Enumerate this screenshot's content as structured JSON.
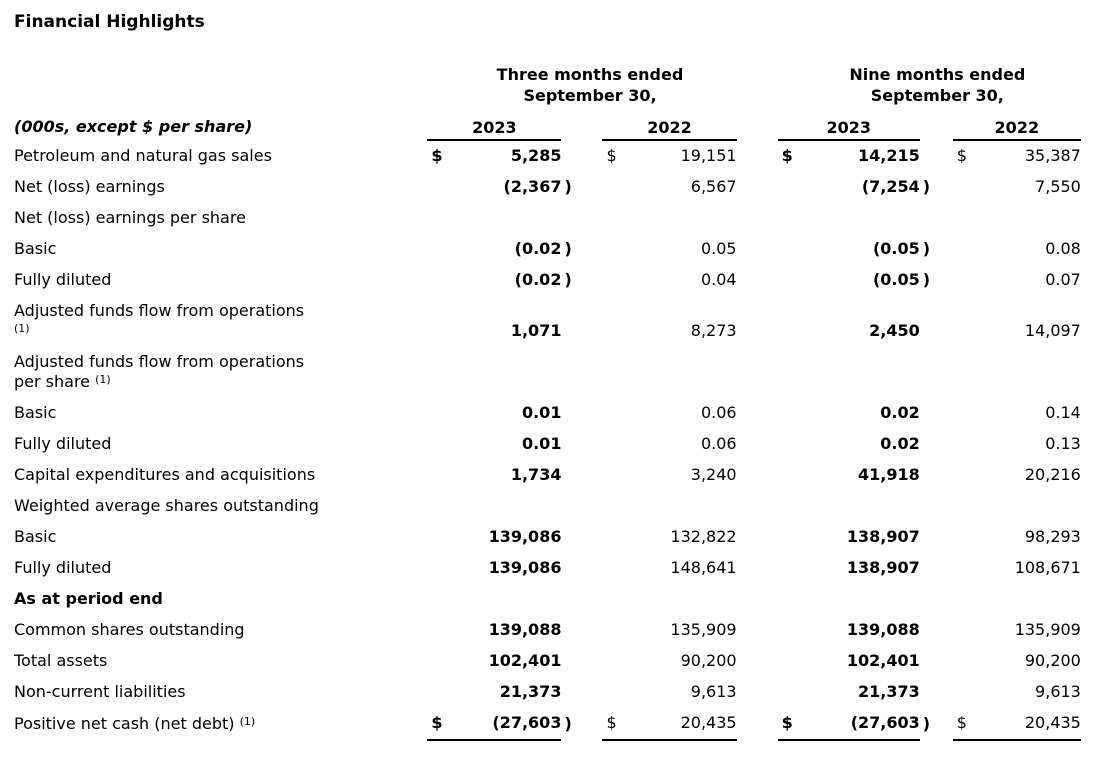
{
  "title": "Financial Highlights",
  "colors": {
    "text": "#000000",
    "background": "#ffffff",
    "rule": "#000000"
  },
  "table": {
    "period_groups": [
      {
        "line1": "Three months ended",
        "line2": "September 30,"
      },
      {
        "line1": "Nine months ended",
        "line2": "September 30,"
      }
    ],
    "years": [
      "2023",
      "2022",
      "2023",
      "2022"
    ],
    "units_note": "(000s, except $ per share)",
    "rows": [
      {
        "label_parts": [
          {
            "text": "Petroleum and natural gas sales"
          }
        ],
        "cells": [
          {
            "d": "$",
            "v": "5,285"
          },
          {
            "d": "$",
            "v": "19,151"
          },
          {
            "d": "$",
            "v": "14,215"
          },
          {
            "d": "$",
            "v": "35,387"
          }
        ]
      },
      {
        "label_parts": [
          {
            "text": "Net (loss) earnings"
          }
        ],
        "cells": [
          {
            "v": "(2,367",
            "p": ")"
          },
          {
            "v": "6,567"
          },
          {
            "v": "(7,254",
            "p": ")"
          },
          {
            "v": "7,550"
          }
        ]
      },
      {
        "label_parts": [
          {
            "text": "Net (loss) earnings per share"
          }
        ],
        "cells": []
      },
      {
        "label_parts": [
          {
            "text": "Basic"
          }
        ],
        "cells": [
          {
            "v": "(0.02",
            "p": ")"
          },
          {
            "v": "0.05"
          },
          {
            "v": "(0.05",
            "p": ")"
          },
          {
            "v": "0.08"
          }
        ]
      },
      {
        "label_parts": [
          {
            "text": "Fully diluted"
          }
        ],
        "cells": [
          {
            "v": "(0.02",
            "p": ")"
          },
          {
            "v": "0.04"
          },
          {
            "v": "(0.05",
            "p": ")"
          },
          {
            "v": "0.07"
          }
        ]
      },
      {
        "label_parts": [
          {
            "text": "Adjusted funds flow from operations"
          },
          {
            "br": true
          },
          {
            "sup": "(1)"
          }
        ],
        "cells": [
          {
            "v": "1,071"
          },
          {
            "v": "8,273"
          },
          {
            "v": "2,450"
          },
          {
            "v": "14,097"
          }
        ]
      },
      {
        "label_parts": [
          {
            "text": "Adjusted funds flow from operations"
          },
          {
            "br": true
          },
          {
            "text": "per share "
          },
          {
            "sup": "(1)"
          }
        ],
        "cells": []
      },
      {
        "label_parts": [
          {
            "text": "Basic"
          }
        ],
        "cells": [
          {
            "v": "0.01"
          },
          {
            "v": "0.06"
          },
          {
            "v": "0.02"
          },
          {
            "v": "0.14"
          }
        ]
      },
      {
        "label_parts": [
          {
            "text": "Fully diluted"
          }
        ],
        "cells": [
          {
            "v": "0.01"
          },
          {
            "v": "0.06"
          },
          {
            "v": "0.02"
          },
          {
            "v": "0.13"
          }
        ]
      },
      {
        "label_parts": [
          {
            "text": "Capital expenditures and acquisitions"
          }
        ],
        "cells": [
          {
            "v": "1,734"
          },
          {
            "v": "3,240"
          },
          {
            "v": "41,918"
          },
          {
            "v": "20,216"
          }
        ]
      },
      {
        "label_parts": [
          {
            "text": "Weighted average shares outstanding"
          }
        ],
        "cells": []
      },
      {
        "label_parts": [
          {
            "text": "Basic"
          }
        ],
        "cells": [
          {
            "v": "139,086"
          },
          {
            "v": "132,822"
          },
          {
            "v": "138,907"
          },
          {
            "v": "98,293"
          }
        ]
      },
      {
        "label_parts": [
          {
            "text": "Fully diluted"
          }
        ],
        "cells": [
          {
            "v": "139,086"
          },
          {
            "v": "148,641"
          },
          {
            "v": "138,907"
          },
          {
            "v": "108,671"
          }
        ]
      },
      {
        "label_parts": [
          {
            "text": "As at period end"
          }
        ],
        "section": true,
        "cells": []
      },
      {
        "label_parts": [
          {
            "text": "Common shares outstanding"
          }
        ],
        "cells": [
          {
            "v": "139,088"
          },
          {
            "v": "135,909"
          },
          {
            "v": "139,088"
          },
          {
            "v": "135,909"
          }
        ]
      },
      {
        "label_parts": [
          {
            "text": "Total assets"
          }
        ],
        "cells": [
          {
            "v": "102,401"
          },
          {
            "v": "90,200"
          },
          {
            "v": "102,401"
          },
          {
            "v": "90,200"
          }
        ]
      },
      {
        "label_parts": [
          {
            "text": "Non-current liabilities"
          }
        ],
        "cells": [
          {
            "v": "21,373"
          },
          {
            "v": "9,613"
          },
          {
            "v": "21,373"
          },
          {
            "v": "9,613"
          }
        ]
      },
      {
        "label_parts": [
          {
            "text": "Positive net cash (net debt) "
          },
          {
            "sup": "(1)"
          }
        ],
        "underline": true,
        "cells": [
          {
            "d": "$",
            "v": "(27,603",
            "p": ")"
          },
          {
            "d": "$",
            "v": "20,435"
          },
          {
            "d": "$",
            "v": "(27,603",
            "p": ")"
          },
          {
            "d": "$",
            "v": "20,435"
          }
        ]
      }
    ]
  }
}
